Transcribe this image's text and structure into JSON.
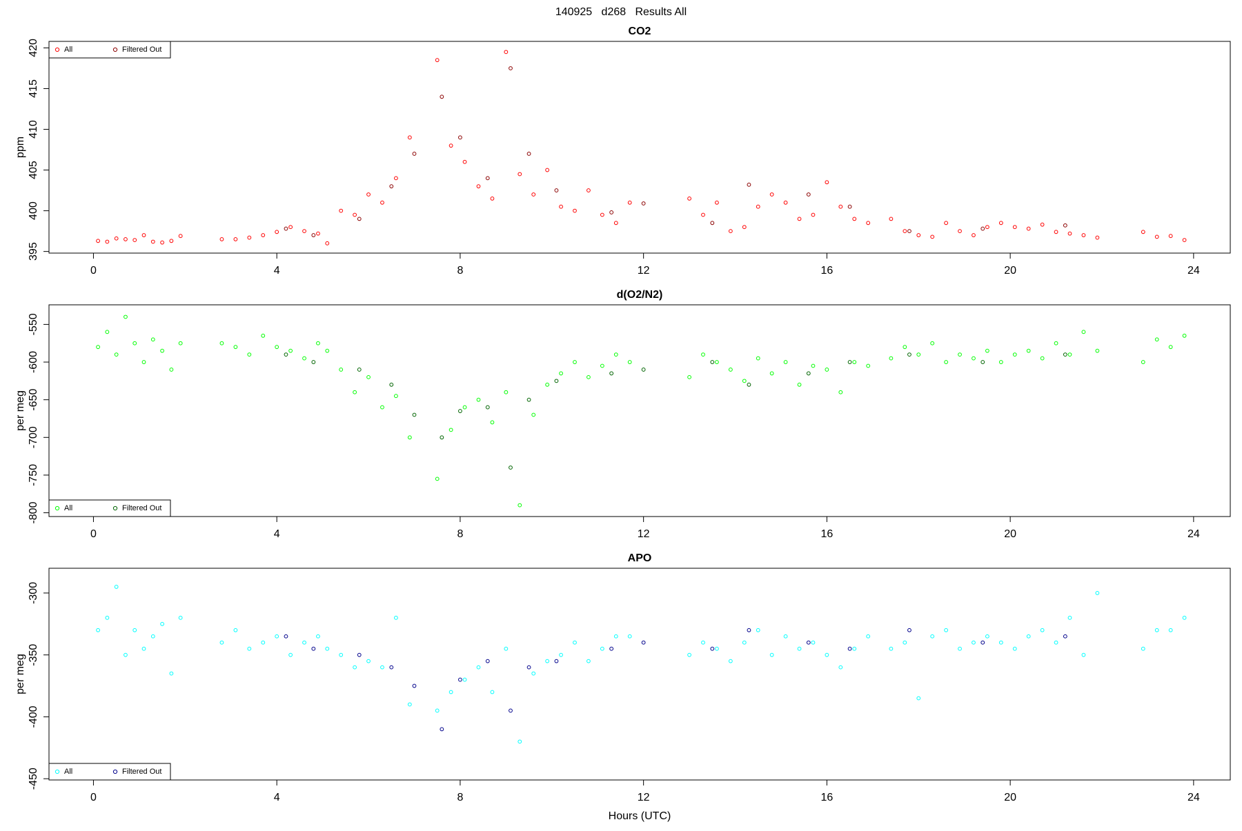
{
  "title": "140925   d268   Results All",
  "chart_data": [
    {
      "type": "scatter",
      "title": "CO2",
      "y_label": "ppm",
      "legend": "topleft",
      "xlim": [
        -0.97,
        24.8
      ],
      "xticks": [
        0,
        4,
        8,
        12,
        16,
        20,
        24
      ],
      "ylim": [
        394.8,
        420.8
      ],
      "yticks": [
        395,
        400,
        405,
        410,
        415,
        420
      ],
      "series": [
        {
          "name": "All",
          "color": "#ff0000",
          "x": [
            0.1,
            0.3,
            0.5,
            0.7,
            0.9,
            1.1,
            1.3,
            1.5,
            1.7,
            1.9,
            2.8,
            3.1,
            3.4,
            3.7,
            4.0,
            4.3,
            4.6,
            4.9,
            5.1,
            5.4,
            5.7,
            6.0,
            6.3,
            6.6,
            6.9,
            7.5,
            7.8,
            8.1,
            8.4,
            8.7,
            9.0,
            9.3,
            9.6,
            9.9,
            10.2,
            10.5,
            10.8,
            11.1,
            11.4,
            11.7,
            13.0,
            13.3,
            13.6,
            13.9,
            14.2,
            14.5,
            14.8,
            15.1,
            15.4,
            15.7,
            16.0,
            16.3,
            16.6,
            16.9,
            17.4,
            17.7,
            18.0,
            18.3,
            18.6,
            18.9,
            19.2,
            19.5,
            19.8,
            20.1,
            20.4,
            20.7,
            21.0,
            21.3,
            21.6,
            21.9,
            22.9,
            23.2,
            23.5,
            23.8
          ],
          "values": [
            396.3,
            396.2,
            396.6,
            396.5,
            396.4,
            397.0,
            396.2,
            396.1,
            396.3,
            396.9,
            396.5,
            396.5,
            396.7,
            397.0,
            397.4,
            398.0,
            397.5,
            397.2,
            396.0,
            400.0,
            399.5,
            402.0,
            401.0,
            404.0,
            409.0,
            418.5,
            408.0,
            406.0,
            403.0,
            401.5,
            419.5,
            404.5,
            402.0,
            405.0,
            400.5,
            400.0,
            402.5,
            399.5,
            398.5,
            401.0,
            401.5,
            399.5,
            401.0,
            397.5,
            398.0,
            400.5,
            402.0,
            401.0,
            399.0,
            399.5,
            403.5,
            400.5,
            399.0,
            398.5,
            399.0,
            397.5,
            397.0,
            396.8,
            398.5,
            397.5,
            397.0,
            398.0,
            398.5,
            398.0,
            397.8,
            398.3,
            397.4,
            397.2,
            397.0,
            396.7,
            397.4,
            396.8,
            396.9,
            396.4
          ]
        },
        {
          "name": "Filtered Out",
          "color": "#8b0000",
          "x": [
            4.2,
            4.8,
            5.8,
            6.5,
            7.0,
            7.6,
            8.0,
            8.6,
            9.1,
            9.5,
            10.1,
            11.3,
            12.0,
            13.5,
            14.3,
            15.6,
            16.5,
            17.8,
            19.4,
            21.2
          ],
          "values": [
            397.8,
            397.0,
            399.0,
            403.0,
            407.0,
            414.0,
            409.0,
            404.0,
            417.5,
            407.0,
            402.5,
            399.8,
            400.9,
            398.5,
            403.2,
            402.0,
            400.5,
            397.5,
            397.8,
            398.2
          ]
        }
      ]
    },
    {
      "type": "scatter",
      "title": "d(O2/N2)",
      "y_label": "per meg",
      "legend": "bottomleft",
      "xlim": [
        -0.97,
        24.8
      ],
      "xticks": [
        0,
        4,
        8,
        12,
        16,
        20,
        24
      ],
      "ylim": [
        -805,
        -524
      ],
      "yticks": [
        -800,
        -750,
        -700,
        -650,
        -600,
        -550
      ],
      "series": [
        {
          "name": "All",
          "color": "#00ff00",
          "x": [
            0.1,
            0.3,
            0.5,
            0.7,
            0.9,
            1.1,
            1.3,
            1.5,
            1.7,
            1.9,
            2.8,
            3.1,
            3.4,
            3.7,
            4.0,
            4.3,
            4.6,
            4.9,
            5.1,
            5.4,
            5.7,
            6.0,
            6.3,
            6.6,
            6.9,
            7.5,
            7.8,
            8.1,
            8.4,
            8.7,
            9.0,
            9.3,
            9.6,
            9.9,
            10.2,
            10.5,
            10.8,
            11.1,
            11.4,
            11.7,
            13.0,
            13.3,
            13.6,
            13.9,
            14.2,
            14.5,
            14.8,
            15.1,
            15.4,
            15.7,
            16.0,
            16.3,
            16.6,
            16.9,
            17.4,
            17.7,
            18.0,
            18.3,
            18.6,
            18.9,
            19.2,
            19.5,
            19.8,
            20.1,
            20.4,
            20.7,
            21.0,
            21.3,
            21.6,
            21.9,
            22.9,
            23.2,
            23.5,
            23.8
          ],
          "values": [
            -580,
            -560,
            -590,
            -540,
            -575,
            -600,
            -570,
            -585,
            -610,
            -575,
            -575,
            -580,
            -590,
            -565,
            -580,
            -585,
            -595,
            -575,
            -585,
            -610,
            -640,
            -620,
            -660,
            -645,
            -700,
            -755,
            -690,
            -660,
            -650,
            -680,
            -640,
            -790,
            -670,
            -630,
            -615,
            -600,
            -620,
            -605,
            -590,
            -600,
            -620,
            -590,
            -600,
            -610,
            -625,
            -595,
            -615,
            -600,
            -630,
            -605,
            -610,
            -640,
            -600,
            -605,
            -595,
            -580,
            -590,
            -575,
            -600,
            -590,
            -595,
            -585,
            -600,
            -590,
            -585,
            -595,
            -575,
            -590,
            -560,
            -585,
            -600,
            -570,
            -580,
            -565
          ]
        },
        {
          "name": "Filtered Out",
          "color": "#006400",
          "x": [
            4.2,
            4.8,
            5.8,
            6.5,
            7.0,
            7.6,
            8.0,
            8.6,
            9.1,
            9.5,
            10.1,
            11.3,
            12.0,
            13.5,
            14.3,
            15.6,
            16.5,
            17.8,
            19.4,
            21.2
          ],
          "values": [
            -590,
            -600,
            -610,
            -630,
            -670,
            -700,
            -665,
            -660,
            -740,
            -650,
            -625,
            -615,
            -610,
            -600,
            -630,
            -615,
            -600,
            -590,
            -600,
            -590
          ]
        }
      ]
    },
    {
      "type": "scatter",
      "title": "APO",
      "y_label": "per meg",
      "x_label": "Hours (UTC)",
      "legend": "bottomleft",
      "xlim": [
        -0.97,
        24.8
      ],
      "xticks": [
        0,
        4,
        8,
        12,
        16,
        20,
        24
      ],
      "ylim": [
        -451,
        -280
      ],
      "yticks": [
        -450,
        -400,
        -350,
        -300
      ],
      "series": [
        {
          "name": "All",
          "color": "#00ffff",
          "x": [
            0.1,
            0.3,
            0.5,
            0.7,
            0.9,
            1.1,
            1.3,
            1.5,
            1.7,
            1.9,
            2.8,
            3.1,
            3.4,
            3.7,
            4.0,
            4.3,
            4.6,
            4.9,
            5.1,
            5.4,
            5.7,
            6.0,
            6.3,
            6.6,
            6.9,
            7.5,
            7.8,
            8.1,
            8.4,
            8.7,
            9.0,
            9.3,
            9.6,
            9.9,
            10.2,
            10.5,
            10.8,
            11.1,
            11.4,
            11.7,
            13.0,
            13.3,
            13.6,
            13.9,
            14.2,
            14.5,
            14.8,
            15.1,
            15.4,
            15.7,
            16.0,
            16.3,
            16.6,
            16.9,
            17.4,
            17.7,
            18.0,
            18.3,
            18.6,
            18.9,
            19.2,
            19.5,
            19.8,
            20.1,
            20.4,
            20.7,
            21.0,
            21.3,
            21.6,
            21.9,
            22.9,
            23.2,
            23.5,
            23.8
          ],
          "values": [
            -330,
            -320,
            -295,
            -350,
            -330,
            -345,
            -335,
            -325,
            -365,
            -320,
            -340,
            -330,
            -345,
            -340,
            -335,
            -350,
            -340,
            -335,
            -345,
            -350,
            -360,
            -355,
            -360,
            -320,
            -390,
            -395,
            -380,
            -370,
            -360,
            -380,
            -345,
            -420,
            -365,
            -355,
            -350,
            -340,
            -355,
            -345,
            -335,
            -335,
            -350,
            -340,
            -345,
            -355,
            -340,
            -330,
            -350,
            -335,
            -345,
            -340,
            -350,
            -360,
            -345,
            -335,
            -345,
            -340,
            -385,
            -335,
            -330,
            -345,
            -340,
            -335,
            -340,
            -345,
            -335,
            -330,
            -340,
            -320,
            -350,
            -300,
            -345,
            -330,
            -330,
            -320
          ]
        },
        {
          "name": "Filtered Out",
          "color": "#00008b",
          "x": [
            4.2,
            4.8,
            5.8,
            6.5,
            7.0,
            7.6,
            8.0,
            8.6,
            9.1,
            9.5,
            10.1,
            11.3,
            12.0,
            13.5,
            14.3,
            15.6,
            16.5,
            17.8,
            19.4,
            21.2
          ],
          "values": [
            -335,
            -345,
            -350,
            -360,
            -375,
            -410,
            -370,
            -355,
            -395,
            -360,
            -355,
            -345,
            -340,
            -345,
            -330,
            -340,
            -345,
            -330,
            -340,
            -335
          ]
        }
      ]
    }
  ]
}
